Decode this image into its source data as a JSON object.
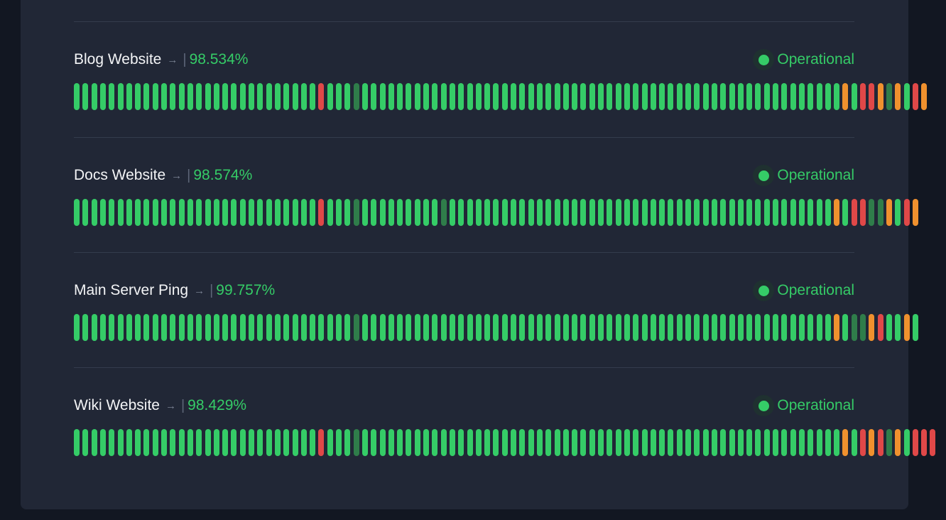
{
  "colors": {
    "up": "#35cc67",
    "down": "#e04848",
    "degraded": "#f0912e",
    "nodata": "#2f7d4a",
    "accent": "#35cc67"
  },
  "monitors": [
    {
      "name": "Blog Website",
      "arrow": "→",
      "separator": "|",
      "uptime": "98.534%",
      "status": "Operational",
      "heartbeats": "uuuuuuuuuuuuuuuuuuuuuuuuuuuuduuunuuuuuuuuuuuuuuuuuuuuuuuuuuuuuuuuuuuuuuuuuuuuuuuuuuuuuuuwuddwnwudw"
    },
    {
      "name": "Docs Website",
      "arrow": "→",
      "separator": "|",
      "uptime": "98.574%",
      "status": "Operational",
      "heartbeats": "uuuuuuuuuuuuuuuuuuuuuuuuuuuuduuunuuuuuuuuunuuuuuuuuuuuuuuuuuuuuuuuuuuuuuuuuuuuuuuuuuuuuwuddnnwudw"
    },
    {
      "name": "Main Server Ping",
      "arrow": "→",
      "separator": "|",
      "uptime": "99.757%",
      "status": "Operational",
      "heartbeats": "uuuuuuuuuuuuuuuuuuuuuuuuuuuuuuuunuuuuuuuuuuuuuuuuuuuuuuuuuuuuuuuuuuuuuuuuuuuuuuuuuuuuuuwunnwduuwu"
    },
    {
      "name": "Wiki Website",
      "arrow": "→",
      "separator": "|",
      "uptime": "98.429%",
      "status": "Operational",
      "heartbeats": "uuuuuuuuuuuuuuuuuuuuuuuuuuuuduuunuuuuuuuuuuuuuuuuuuuuuuuuuuuuuuuuuuuuuuuuuuuuuuuuuuuuuuuwudwdnwuddd"
    }
  ]
}
